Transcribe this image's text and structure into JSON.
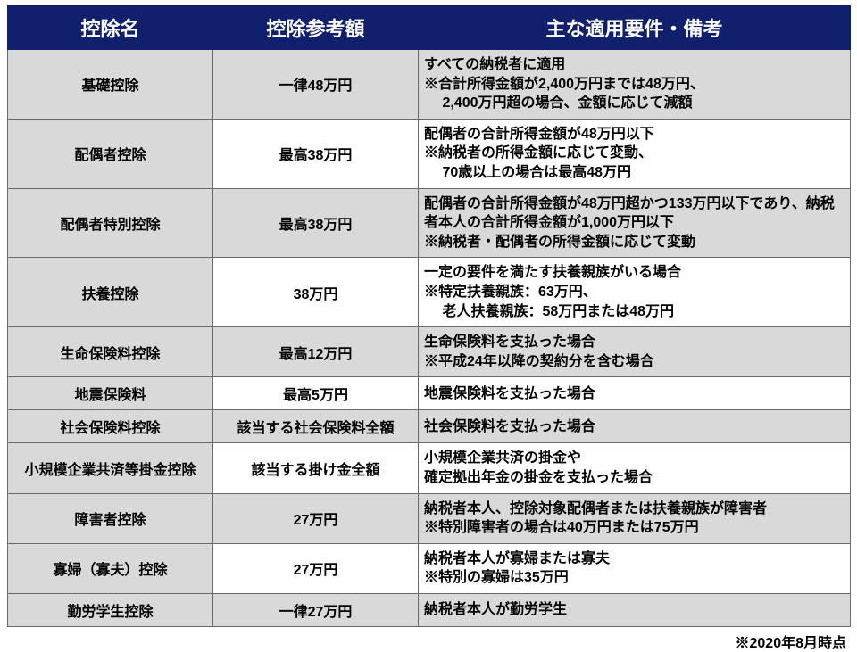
{
  "headers": {
    "name": "控除名",
    "amount": "控除参考額",
    "note": "主な適用要件・備考"
  },
  "colWidths": {
    "name": 230,
    "amount": 230,
    "note": 484
  },
  "colors": {
    "headerBg": "#10206c",
    "headerFg": "#ffffff",
    "altBg": "#d9d9d9",
    "border": "#6a6a6a"
  },
  "rows": [
    {
      "name": "基礎控除",
      "amount": "一律48万円",
      "note": "すべての納税者に適用\n※合計所得金額が2,400万円までは48万円、\n　 2,400万円超の場合、金額に応じて減額"
    },
    {
      "name": "配偶者控除",
      "amount": "最高38万円",
      "note": "配偶者の合計所得金額が48万円以下\n※納税者の所得金額に応じて変動、\n　 70歳以上の場合は最高48万円"
    },
    {
      "name": "配偶者特別控除",
      "amount": "最高38万円",
      "note": "配偶者の合計所得金額が48万円超かつ133万円以下であり、納税者本人の合計所得金額が1,000万円以下\n※納税者・配偶者の所得金額に応じて変動"
    },
    {
      "name": "扶養控除",
      "amount": "38万円",
      "note": "一定の要件を満たす扶養親族がいる場合\n※特定扶養親族：63万円、\n　 老人扶養親族：58万円または48万円"
    },
    {
      "name": "生命保険料控除",
      "amount": "最高12万円",
      "note": "生命保険料を支払った場合\n※平成24年以降の契約分を含む場合"
    },
    {
      "name": "地震保険料",
      "amount": "最高5万円",
      "note": "地震保険料を支払った場合"
    },
    {
      "name": "社会保険料控除",
      "amount": "該当する社会保険料全額",
      "note": "社会保険料を支払った場合"
    },
    {
      "name": "小規模企業共済等掛金控除",
      "amount": "該当する掛け金全額",
      "note": "小規模企業共済の掛金や\n確定拠出年金の掛金を支払った場合"
    },
    {
      "name": "障害者控除",
      "amount": "27万円",
      "note": "納税者本人、控除対象配偶者または扶養親族が障害者\n※特別障害者の場合は40万円または75万円"
    },
    {
      "name": "寡婦（寡夫）控除",
      "amount": "27万円",
      "note": "納税者本人が寡婦または寡夫\n※特別の寡婦は35万円"
    },
    {
      "name": "勤労学生控除",
      "amount": "一律27万円",
      "note": "納税者本人が勤労学生"
    }
  ],
  "footnote": "※2020年8月時点"
}
